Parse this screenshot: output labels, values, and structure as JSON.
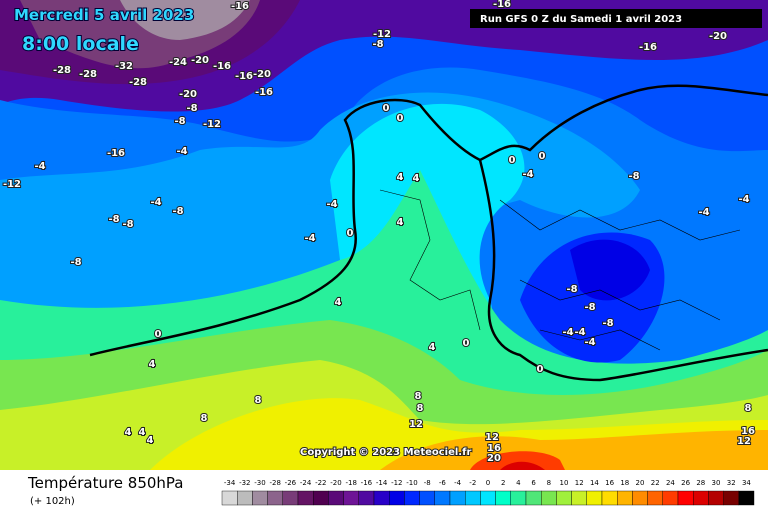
{
  "header": {
    "date": "Mercredi 5 avril 2023",
    "time": "8:00 locale",
    "run": "Run GFS 0 Z du Samedi 1 avril 2023"
  },
  "footer": {
    "title": "Température 850hPa",
    "lead": "(+ 102h)",
    "copyright": "Copyright © 2023 Meteociel.fr"
  },
  "colorbar": {
    "values": [
      -34,
      -32,
      -30,
      -28,
      -26,
      -24,
      -22,
      -20,
      -18,
      -16,
      -14,
      -12,
      -10,
      -8,
      -6,
      -4,
      -2,
      0,
      2,
      4,
      6,
      8,
      10,
      12,
      14,
      16,
      18,
      20,
      22,
      24,
      26,
      28,
      30,
      32,
      34
    ],
    "colors": [
      "#d8d8d8",
      "#bcbcbc",
      "#a08ca0",
      "#8c648c",
      "#783c78",
      "#641464",
      "#500050",
      "#5a0a78",
      "#6e1496",
      "#500aa0",
      "#2800c8",
      "#0000e6",
      "#0028ff",
      "#0050ff",
      "#0078ff",
      "#00a0ff",
      "#00c8ff",
      "#00e6ff",
      "#00ffc8",
      "#28f09b",
      "#50e678",
      "#78e650",
      "#a0f03c",
      "#c8f028",
      "#f0f000",
      "#ffdc00",
      "#ffb400",
      "#ff8c00",
      "#ff6400",
      "#ff3c00",
      "#ff0000",
      "#dc0000",
      "#b40000",
      "#780000",
      "#000000"
    ]
  },
  "contour_labels": [
    -16,
    -20,
    -16,
    -12,
    -8,
    -16,
    -28,
    -28,
    -32,
    -28,
    -24,
    -20,
    -16,
    -16,
    -20,
    -16,
    -20,
    -8,
    -8,
    -12,
    -16,
    -4,
    -4,
    -12,
    -4,
    -8,
    -8,
    -8,
    -8,
    -4,
    -4,
    0,
    0,
    0,
    0,
    0,
    -4,
    -8,
    -4,
    -4,
    -8,
    -8,
    -8,
    -4,
    -4,
    -4,
    0,
    4,
    4,
    4,
    0,
    0,
    4,
    4,
    4,
    8,
    8,
    8,
    8,
    12,
    12,
    16,
    20,
    4,
    4,
    4,
    8,
    12,
    16
  ]
}
